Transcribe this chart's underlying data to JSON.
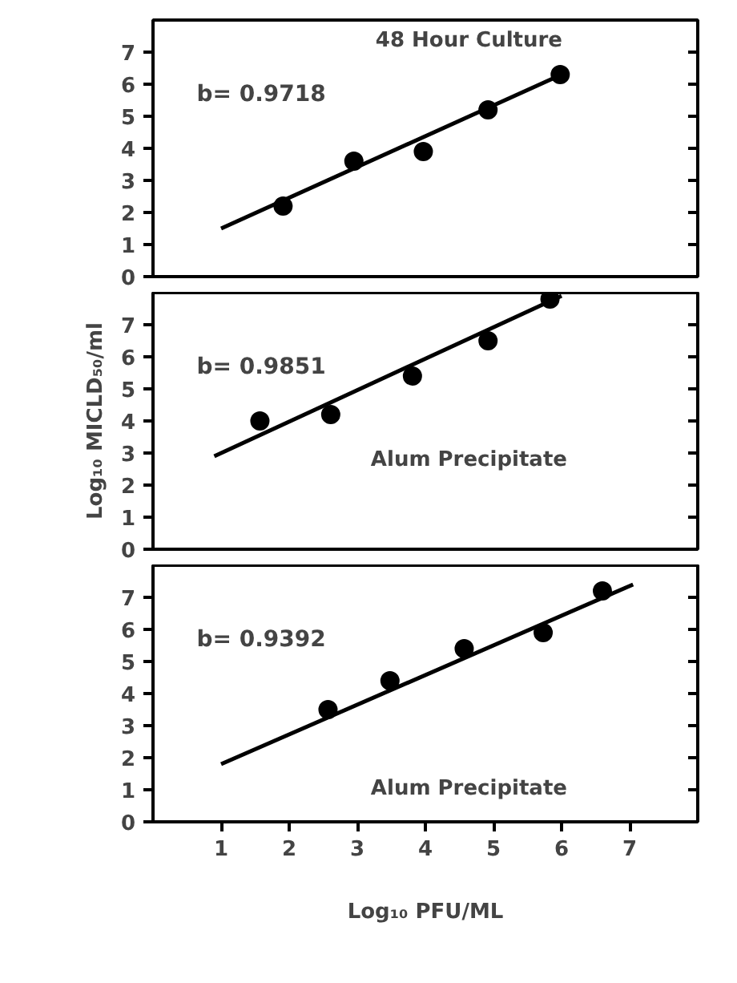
{
  "chart_data": [
    {
      "type": "scatter",
      "title": "48 Hour Culture",
      "annotations": [
        "b= 0.9718"
      ],
      "xlim": [
        0,
        8
      ],
      "ylim": [
        0,
        8
      ],
      "yticks": [
        0,
        1,
        2,
        3,
        4,
        5,
        6,
        7
      ],
      "tick_labels": "y",
      "grid": false,
      "line_style": "solid",
      "series": [
        {
          "marker": "circle",
          "color": "#000000",
          "x": [
            1.91,
            2.95,
            3.97,
            4.92,
            5.98
          ],
          "values": [
            2.2,
            3.6,
            3.9,
            5.2,
            6.3
          ]
        },
        {
          "type": "line",
          "color": "#000000",
          "x": [
            1.0,
            6.0
          ],
          "values": [
            1.5,
            6.3
          ]
        }
      ]
    },
    {
      "type": "scatter",
      "title": "Alum Precipitate",
      "annotations": [
        "b= 0.9851"
      ],
      "ylabel": "Log₁₀ MICLD₅₀/ml",
      "xlim": [
        0,
        8
      ],
      "ylim": [
        0,
        8
      ],
      "yticks": [
        0,
        1,
        2,
        3,
        4,
        5,
        6,
        7
      ],
      "tick_labels": "y",
      "grid": false,
      "line_style": "solid",
      "series": [
        {
          "marker": "circle",
          "color": "#000000",
          "x": [
            1.57,
            2.61,
            3.81,
            4.92,
            5.83
          ],
          "values": [
            4.0,
            4.2,
            5.4,
            6.5,
            7.8
          ]
        },
        {
          "type": "line",
          "color": "#000000",
          "x": [
            0.9,
            6.0
          ],
          "values": [
            2.9,
            7.9
          ]
        }
      ]
    },
    {
      "type": "scatter",
      "title": "Alum Precipitate",
      "annotations": [
        "b= 0.9392"
      ],
      "xlabel": "Log₁₀ PFU/ML",
      "xlim": [
        0,
        8
      ],
      "ylim": [
        0,
        8
      ],
      "xticks": [
        1,
        2,
        3,
        4,
        5,
        6,
        7
      ],
      "yticks": [
        0,
        1,
        2,
        3,
        4,
        5,
        6,
        7
      ],
      "grid": false,
      "line_style": "solid",
      "series": [
        {
          "marker": "circle",
          "color": "#000000",
          "x": [
            2.57,
            3.48,
            4.57,
            5.73,
            6.6
          ],
          "values": [
            3.5,
            4.4,
            5.4,
            5.9,
            7.2
          ]
        },
        {
          "type": "line",
          "color": "#000000",
          "x": [
            1.0,
            7.05
          ],
          "values": [
            1.8,
            7.4
          ]
        }
      ]
    }
  ]
}
